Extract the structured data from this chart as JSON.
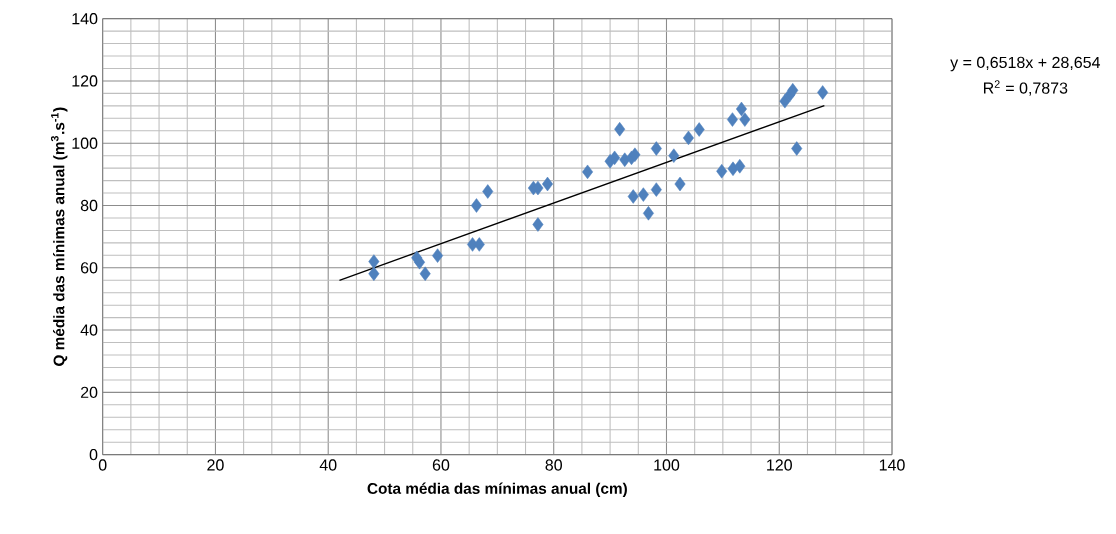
{
  "chart_data": {
    "type": "scatter",
    "xlabel": "Cota média das mínimas anual (cm)",
    "ylabel": "Q média das mínimas anual (m$^{3}$.s$^{-1}$)",
    "annotations": [
      "y = 0,6518x + 28,654",
      "R$^{2}$ = 0,7873"
    ],
    "xlim": [
      0,
      140
    ],
    "ylim": [
      0,
      140
    ],
    "xticks": [
      0,
      20,
      40,
      60,
      80,
      100,
      120,
      140
    ],
    "yticks": [
      0,
      20,
      40,
      60,
      80,
      100,
      120,
      140
    ],
    "grid": true,
    "marker": "diamond",
    "series": [
      {
        "color": "#4f81bd",
        "x": [
          48.1,
          48.1,
          55.7,
          56.2,
          57.2,
          59.4,
          65.6,
          66.8,
          66.3,
          68.3,
          76.4,
          77.2,
          78.9,
          77.2,
          86.0,
          90.0,
          90.8,
          91.7,
          92.6,
          93.8,
          94.4,
          94.1,
          95.9,
          96.8,
          98.2,
          98.2,
          101.3,
          102.4,
          103.9,
          105.8,
          109.8,
          111.8,
          113.0,
          111.7,
          113.3,
          113.9,
          121.0,
          121.9,
          122.4,
          123.1,
          127.7
        ],
        "values": [
          62.0,
          58.1,
          63.2,
          61.8,
          58.1,
          63.9,
          67.5,
          67.5,
          80.0,
          84.5,
          85.6,
          85.6,
          86.9,
          73.9,
          90.8,
          94.2,
          95.3,
          104.5,
          94.7,
          95.3,
          96.3,
          82.9,
          83.5,
          77.5,
          85.1,
          98.3,
          96.0,
          86.9,
          101.7,
          104.4,
          91.0,
          91.8,
          92.6,
          107.6,
          111.0,
          107.6,
          113.5,
          115.6,
          117.0,
          98.3,
          116.3
        ]
      },
      {
        "type": "line",
        "color": "#000000",
        "marker": "none",
        "x": [
          42,
          128
        ],
        "values": [
          56,
          112.1
        ]
      }
    ]
  }
}
